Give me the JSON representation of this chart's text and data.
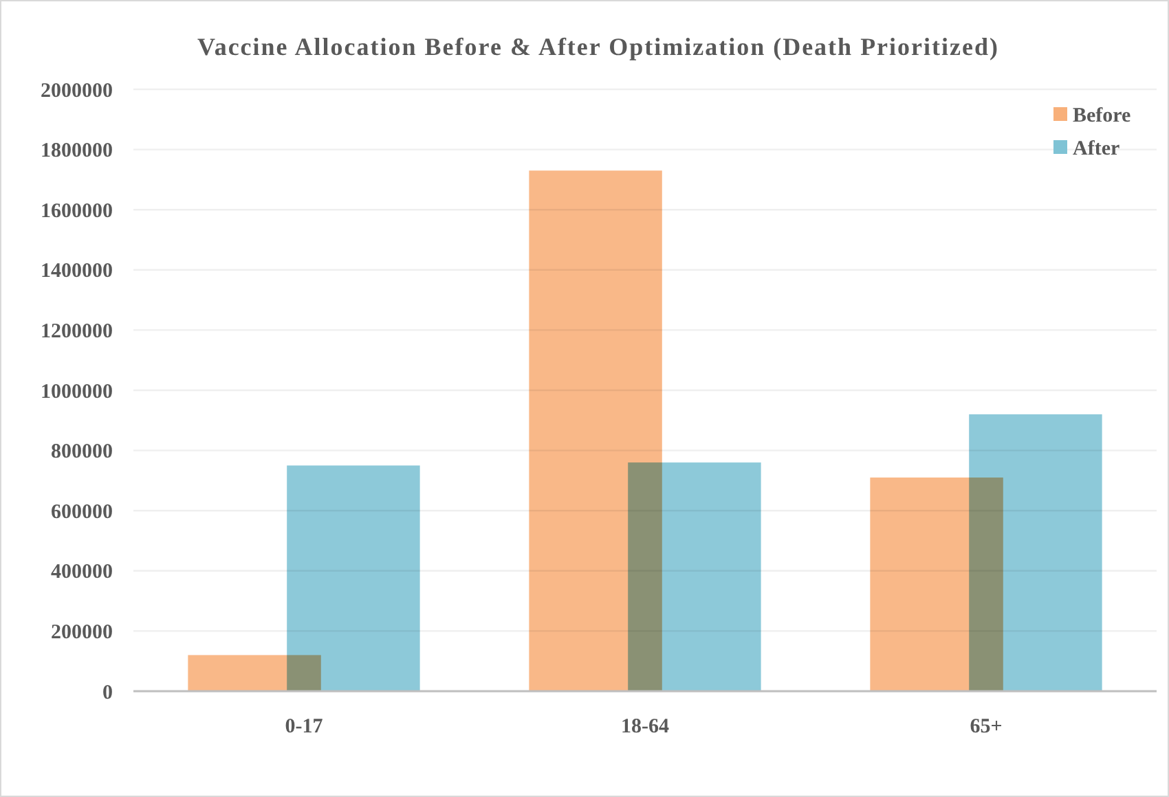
{
  "chart_data": {
    "type": "bar",
    "title": "Vaccine Allocation Before & After Optimization (Death Prioritized)",
    "categories": [
      "0-17",
      "18-64",
      "65+"
    ],
    "series": [
      {
        "name": "Before",
        "color": "#f8b07a",
        "values": [
          120000,
          1730000,
          710000
        ]
      },
      {
        "name": "After",
        "color": "#7fc3d5",
        "values": [
          750000,
          760000,
          920000
        ]
      }
    ],
    "ylim": [
      0,
      2000000
    ],
    "yticks": [
      0,
      200000,
      400000,
      600000,
      800000,
      1000000,
      1200000,
      1400000,
      1600000,
      1800000,
      2000000
    ],
    "grid": "y",
    "legend": "top right"
  }
}
